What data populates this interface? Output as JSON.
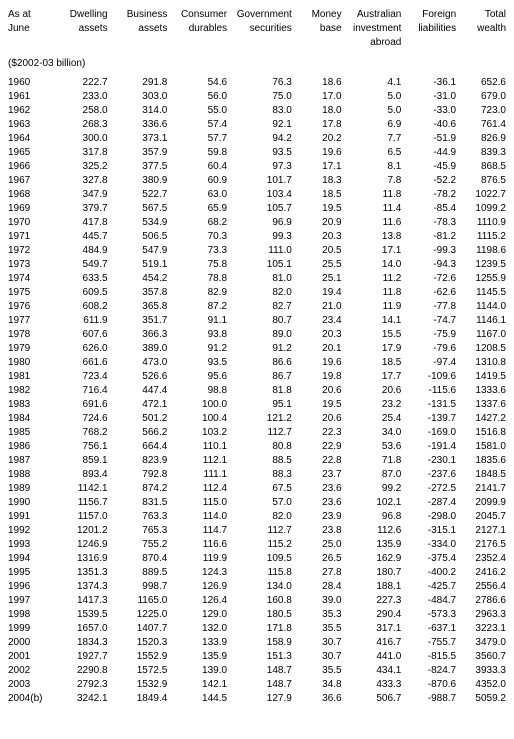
{
  "table": {
    "columns": [
      [
        "As at",
        "June"
      ],
      [
        "Dwelling",
        "assets"
      ],
      [
        "Business",
        "assets"
      ],
      [
        "Consumer",
        "durables"
      ],
      [
        "Government",
        "securities"
      ],
      [
        "Money",
        "base"
      ],
      [
        "Australian",
        "investment",
        "abroad"
      ],
      [
        "Foreign",
        "liabilities"
      ],
      [
        "Total",
        "wealth"
      ]
    ],
    "unit_label": "($2002-03 billion)",
    "rows": [
      [
        "1960",
        "222.7",
        "291.8",
        "54.6",
        "76.3",
        "18.6",
        "4.1",
        "-36.1",
        "652.6"
      ],
      [
        "1961",
        "233.0",
        "303.0",
        "56.0",
        "75.0",
        "17.0",
        "5.0",
        "-31.0",
        "679.0"
      ],
      [
        "1962",
        "258.0",
        "314.0",
        "55.0",
        "83.0",
        "18.0",
        "5.0",
        "-33.0",
        "723.0"
      ],
      [
        "1963",
        "268.3",
        "336.6",
        "57.4",
        "92.1",
        "17.8",
        "6.9",
        "-40.6",
        "761.4"
      ],
      [
        "1964",
        "300.0",
        "373.1",
        "57.7",
        "94.2",
        "20.2",
        "7.7",
        "-51.9",
        "826.9"
      ],
      [
        "1965",
        "317.8",
        "357.9",
        "59.8",
        "93.5",
        "19.6",
        "6.5",
        "-44.9",
        "839.3"
      ],
      [
        "1966",
        "325.2",
        "377.5",
        "60.4",
        "97.3",
        "17.1",
        "8.1",
        "-45.9",
        "868.5"
      ],
      [
        "1967",
        "327.8",
        "380.9",
        "60.9",
        "101.7",
        "18.3",
        "7.8",
        "-52.2",
        "876.5"
      ],
      [
        "1968",
        "347.9",
        "522.7",
        "63.0",
        "103.4",
        "18.5",
        "11.8",
        "-78.2",
        "1022.7"
      ],
      [
        "1969",
        "379.7",
        "567.5",
        "65.9",
        "105.7",
        "19.5",
        "11.4",
        "-85.4",
        "1099.2"
      ],
      [
        "1970",
        "417.8",
        "534.9",
        "68.2",
        "96.9",
        "20.9",
        "11.6",
        "-78.3",
        "1110.9"
      ],
      [
        "1971",
        "445.7",
        "506.5",
        "70.3",
        "99.3",
        "20.3",
        "13.8",
        "-81.2",
        "1115.2"
      ],
      [
        "1972",
        "484.9",
        "547.9",
        "73.3",
        "111.0",
        "20.5",
        "17.1",
        "-99.3",
        "1198.6"
      ],
      [
        "1973",
        "549.7",
        "519.1",
        "75.8",
        "105.1",
        "25.5",
        "14.0",
        "-94.3",
        "1239.5"
      ],
      [
        "1974",
        "633.5",
        "454.2",
        "78.8",
        "81.0",
        "25.1",
        "11.2",
        "-72.6",
        "1255.9"
      ],
      [
        "1975",
        "609.5",
        "357.8",
        "82.9",
        "82.0",
        "19.4",
        "11.8",
        "-62.6",
        "1145.5"
      ],
      [
        "1976",
        "608.2",
        "365.8",
        "87.2",
        "82.7",
        "21.0",
        "11.9",
        "-77.8",
        "1144.0"
      ],
      [
        "1977",
        "611.9",
        "351.7",
        "91.1",
        "80.7",
        "23.4",
        "14.1",
        "-74.7",
        "1146.1"
      ],
      [
        "1978",
        "607.6",
        "366.3",
        "93.8",
        "89.0",
        "20.3",
        "15.5",
        "-75.9",
        "1167.0"
      ],
      [
        "1979",
        "626.0",
        "389.0",
        "91.2",
        "91.2",
        "20.1",
        "17.9",
        "-79.6",
        "1208.5"
      ],
      [
        "1980",
        "661.6",
        "473.0",
        "93.5",
        "86.6",
        "19.6",
        "18.5",
        "-97.4",
        "1310.8"
      ],
      [
        "1981",
        "723.4",
        "526.6",
        "95.6",
        "86.7",
        "19.8",
        "17.7",
        "-109.6",
        "1419.5"
      ],
      [
        "1982",
        "716.4",
        "447.4",
        "98.8",
        "81.8",
        "20.6",
        "20.6",
        "-115.6",
        "1333.6"
      ],
      [
        "1983",
        "691.6",
        "472.1",
        "100.0",
        "95.1",
        "19.5",
        "23.2",
        "-131.5",
        "1337.6"
      ],
      [
        "1984",
        "724.6",
        "501.2",
        "100.4",
        "121.2",
        "20.6",
        "25.4",
        "-139.7",
        "1427.2"
      ],
      [
        "1985",
        "768.2",
        "566.2",
        "103.2",
        "112.7",
        "22.3",
        "34.0",
        "-169.0",
        "1516.8"
      ],
      [
        "1986",
        "756.1",
        "664.4",
        "110.1",
        "80.8",
        "22.9",
        "53.6",
        "-191.4",
        "1581.0"
      ],
      [
        "1987",
        "859.1",
        "823.9",
        "112.1",
        "88.5",
        "22.8",
        "71.8",
        "-230.1",
        "1835.6"
      ],
      [
        "1988",
        "893.4",
        "792.8",
        "111.1",
        "88.3",
        "23.7",
        "87.0",
        "-237.6",
        "1848.5"
      ],
      [
        "1989",
        "1142.1",
        "874.2",
        "112.4",
        "67.5",
        "23.6",
        "99.2",
        "-272.5",
        "2141.7"
      ],
      [
        "1990",
        "1156.7",
        "831.5",
        "115.0",
        "57.0",
        "23.6",
        "102.1",
        "-287.4",
        "2099.9"
      ],
      [
        "1991",
        "1157.0",
        "763.3",
        "114.0",
        "82.0",
        "23.9",
        "96.8",
        "-298.0",
        "2045.7"
      ],
      [
        "1992",
        "1201.2",
        "765.3",
        "114.7",
        "112.7",
        "23.8",
        "112.6",
        "-315.1",
        "2127.1"
      ],
      [
        "1993",
        "1246.9",
        "755.2",
        "116.6",
        "115.2",
        "25.0",
        "135.9",
        "-334.0",
        "2176.5"
      ],
      [
        "1994",
        "1316.9",
        "870.4",
        "119.9",
        "109.5",
        "26.5",
        "162.9",
        "-375.4",
        "2352.4"
      ],
      [
        "1995",
        "1351.3",
        "889.5",
        "124.3",
        "115.8",
        "27.8",
        "180.7",
        "-400.2",
        "2416.2"
      ],
      [
        "1996",
        "1374.3",
        "998.7",
        "126.9",
        "134.0",
        "28.4",
        "188.1",
        "-425.7",
        "2556.4"
      ],
      [
        "1997",
        "1417.3",
        "1165.0",
        "126.4",
        "160.8",
        "39.0",
        "227.3",
        "-484.7",
        "2786.6"
      ],
      [
        "1998",
        "1539.5",
        "1225.0",
        "129.0",
        "180.5",
        "35.3",
        "290.4",
        "-573.3",
        "2963.3"
      ],
      [
        "1999",
        "1657.0",
        "1407.7",
        "132.0",
        "171.8",
        "35.5",
        "317.1",
        "-637.1",
        "3223.1"
      ],
      [
        "2000",
        "1834.3",
        "1520.3",
        "133.9",
        "158.9",
        "30.7",
        "416.7",
        "-755.7",
        "3479.0"
      ],
      [
        "2001",
        "1927.7",
        "1552.9",
        "135.9",
        "151.3",
        "30.7",
        "441.0",
        "-815.5",
        "3560.7"
      ],
      [
        "2002",
        "2290.8",
        "1572.5",
        "139.0",
        "148.7",
        "35.5",
        "434.1",
        "-824.7",
        "3933.3"
      ],
      [
        "2003",
        "2792.3",
        "1532.9",
        "142.1",
        "148.7",
        "34.8",
        "433.3",
        "-870.6",
        "4352.0"
      ],
      [
        "2004(b)",
        "3242.1",
        "1849.4",
        "144.5",
        "127.9",
        "36.6",
        "506.7",
        "-988.7",
        "5059.2"
      ]
    ],
    "font_family": "Arial",
    "font_size_pt": 8,
    "text_color": "#000000",
    "background_color": "#ffffff"
  }
}
